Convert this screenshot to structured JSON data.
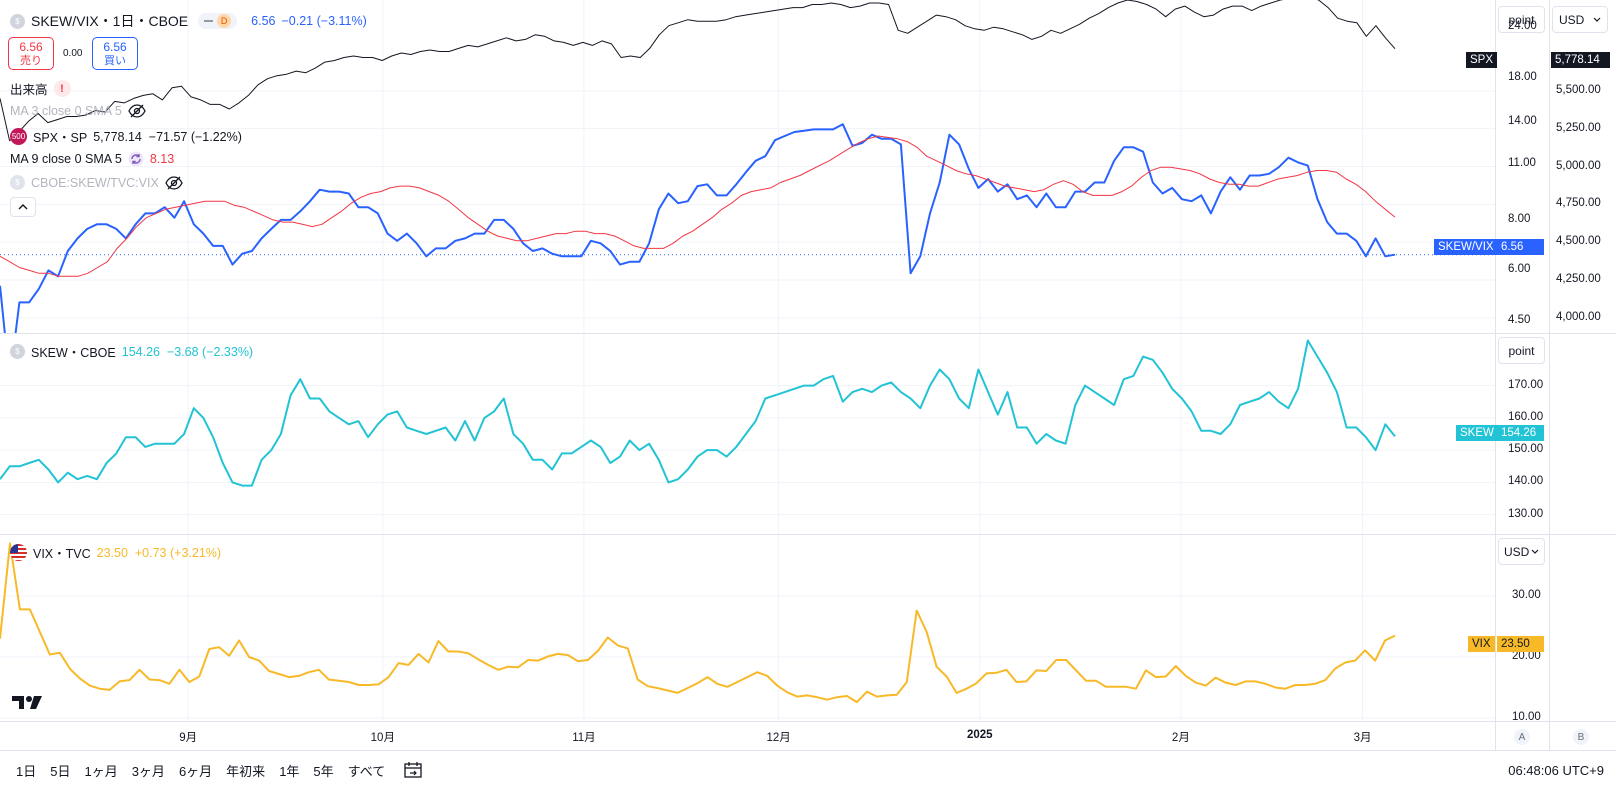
{
  "header": {
    "symbol": "SKEW/VIX・1日・CBOE",
    "interval_badge": "D",
    "last": "6.56",
    "change": "−0.21 (−3.11%)",
    "sell_price": "6.56",
    "sell_label": "売り",
    "spread": "0.00",
    "buy_price": "6.56",
    "buy_label": "買い"
  },
  "legends": {
    "volume": "出来高",
    "ma3": "MA 3 close 0 SMA 5",
    "spx_symbol": "SPX・SP",
    "spx_values": "5,778.14  −71.57 (−1.22%)",
    "spx_logo": "500",
    "ma9": "MA 9 close 0 SMA 5",
    "ma9_value": "8.13",
    "compare": "CBOE:SKEW/TVC:VIX",
    "skew_symbol": "SKEW・CBOE",
    "skew_values": "154.26  −3.68 (−2.33%)",
    "vix_symbol": "VIX・TVC",
    "vix_values": "23.50  +0.73 (+3.21%)"
  },
  "right_controls": {
    "scale_unit_1": "point",
    "currency_1": "USD",
    "scale_unit_2": "point",
    "currency_3": "USD",
    "axis_a": "A",
    "axis_b": "B"
  },
  "price_tags": {
    "spx_label": "SPX",
    "spx_value": "5,778.14",
    "ratio_label": "SKEW/VIX",
    "ratio_value": "6.56",
    "skew_label": "SKEW",
    "skew_value": "154.26",
    "vix_label": "VIX",
    "vix_value": "23.50"
  },
  "colors": {
    "ratio": "#2962ff",
    "ma9": "#f23645",
    "spx": "#131722",
    "skew": "#22c3d4",
    "vix": "#f7b928"
  },
  "axes": {
    "pane1_left_ticks": [
      "24.00",
      "18.00",
      "14.00",
      "11.00",
      "8.00",
      "6.00",
      "4.50"
    ],
    "pane1_right_ticks": [
      "5,500.00",
      "5,250.00",
      "5,000.00",
      "4,750.00",
      "4,500.00",
      "4,250.00",
      "4,000.00"
    ],
    "pane2_ticks": [
      "170.00",
      "160.00",
      "150.00",
      "140.00",
      "130.00"
    ],
    "pane3_ticks": [
      "30.00",
      "20.00",
      "10.00"
    ],
    "x_ticks": [
      "9月",
      "10月",
      "11月",
      "12月",
      "2025",
      "2月",
      "3月"
    ]
  },
  "bottom_bar": {
    "periods": [
      "1日",
      "5日",
      "1ヶ月",
      "3ヶ月",
      "6ヶ月",
      "年初来",
      "1年",
      "5年",
      "すべて"
    ],
    "clock": "06:48:06 UTC+9"
  },
  "chart_data": [
    {
      "type": "line",
      "pane": "top",
      "x_range": [
        "2024-08-03",
        "2025-03-06"
      ],
      "y_scale": "log",
      "series": [
        {
          "name": "SKEW/VIX",
          "axis": "left",
          "values": [
            5.5,
            3.2,
            5.0,
            5.0,
            5.4,
            6.0,
            5.8,
            6.7,
            7.2,
            7.6,
            7.8,
            7.8,
            7.6,
            7.2,
            7.8,
            8.3,
            8.3,
            8.6,
            8.1,
            8.9,
            7.8,
            7.4,
            6.9,
            6.9,
            6.2,
            6.6,
            6.7,
            7.2,
            7.6,
            8.0,
            8.0,
            8.4,
            8.9,
            9.5,
            9.4,
            9.4,
            9.3,
            8.6,
            8.6,
            8.3,
            7.4,
            7.1,
            7.4,
            7.0,
            6.5,
            6.8,
            6.8,
            7.1,
            7.2,
            7.4,
            7.4,
            8.0,
            8.0,
            7.6,
            7.0,
            6.7,
            6.8,
            6.6,
            6.5,
            6.5,
            6.5,
            7.1,
            7.0,
            6.7,
            6.2,
            6.3,
            6.3,
            7.0,
            8.5,
            9.3,
            8.8,
            8.9,
            9.7,
            9.8,
            9.2,
            9.2,
            9.8,
            10.5,
            11.2,
            11.5,
            12.6,
            12.9,
            13.2,
            13.3,
            13.4,
            13.4,
            13.4,
            13.8,
            12.2,
            12.4,
            13.0,
            12.7,
            12.7,
            12.3,
            5.9,
            6.5,
            8.3,
            9.9,
            13.0,
            12.3,
            10.7,
            9.6,
            10.1,
            9.4,
            9.8,
            9.0,
            9.2,
            8.6,
            9.3,
            8.6,
            8.6,
            9.4,
            9.4,
            9.9,
            9.9,
            11.2,
            12.1,
            12.1,
            11.8,
            9.9,
            9.3,
            9.6,
            9.0,
            8.9,
            9.2,
            8.3,
            9.4,
            10.2,
            9.5,
            10.3,
            10.3,
            10.4,
            10.8,
            11.4,
            11.1,
            10.9,
            9.0,
            7.9,
            7.4,
            7.4,
            7.1,
            6.5,
            7.2,
            6.5,
            6.56
          ]
        },
        {
          "name": "MA 9",
          "axis": "left",
          "values": [
            6.5,
            6.3,
            6.1,
            6.0,
            5.9,
            5.9,
            5.8,
            5.8,
            5.8,
            5.9,
            6.1,
            6.3,
            6.8,
            7.2,
            7.7,
            8.1,
            8.3,
            8.5,
            8.6,
            8.7,
            8.8,
            8.9,
            8.9,
            8.9,
            8.7,
            8.6,
            8.4,
            8.2,
            8.0,
            7.9,
            7.9,
            7.8,
            7.7,
            7.8,
            8.1,
            8.4,
            8.8,
            9.1,
            9.3,
            9.4,
            9.6,
            9.7,
            9.7,
            9.6,
            9.4,
            9.2,
            8.9,
            8.5,
            8.1,
            7.8,
            7.5,
            7.3,
            7.2,
            7.1,
            7.1,
            7.2,
            7.3,
            7.4,
            7.4,
            7.5,
            7.5,
            7.4,
            7.4,
            7.3,
            7.1,
            6.9,
            6.8,
            6.8,
            6.8,
            7.0,
            7.3,
            7.5,
            7.8,
            8.1,
            8.5,
            8.8,
            9.2,
            9.4,
            9.5,
            9.6,
            9.9,
            10.1,
            10.3,
            10.6,
            10.9,
            11.2,
            11.6,
            12.0,
            12.4,
            12.7,
            12.9,
            12.8,
            12.7,
            12.5,
            12.1,
            11.5,
            11.2,
            10.9,
            10.6,
            10.4,
            10.3,
            10.1,
            9.9,
            9.7,
            9.6,
            9.5,
            9.4,
            9.5,
            9.8,
            10.0,
            9.8,
            9.4,
            9.2,
            9.2,
            9.2,
            9.4,
            9.7,
            10.2,
            10.6,
            10.8,
            10.8,
            10.7,
            10.6,
            10.4,
            10.1,
            9.9,
            9.8,
            9.8,
            9.7,
            9.7,
            9.9,
            10.1,
            10.2,
            10.3,
            10.5,
            10.6,
            10.6,
            10.5,
            10.1,
            9.8,
            9.4,
            8.9,
            8.5,
            8.13
          ]
        },
        {
          "name": "SPX",
          "axis": "right",
          "values": [
            5450,
            5170,
            5230,
            5300,
            5350,
            5290,
            5310,
            5330,
            5330,
            5340,
            5370,
            5360,
            5430,
            5420,
            5450,
            5470,
            5480,
            5440,
            5520,
            5530,
            5460,
            5440,
            5410,
            5410,
            5380,
            5420,
            5470,
            5540,
            5580,
            5600,
            5610,
            5630,
            5620,
            5650,
            5690,
            5700,
            5720,
            5730,
            5720,
            5720,
            5700,
            5730,
            5750,
            5740,
            5760,
            5770,
            5760,
            5760,
            5780,
            5800,
            5790,
            5810,
            5830,
            5850,
            5830,
            5840,
            5870,
            5860,
            5830,
            5820,
            5800,
            5820,
            5800,
            5830,
            5810,
            5720,
            5730,
            5720,
            5780,
            5870,
            5930,
            5950,
            5970,
            5960,
            5960,
            5960,
            5970,
            5990,
            6000,
            6010,
            6020,
            6030,
            6040,
            6050,
            6050,
            6070,
            6070,
            6080,
            6070,
            6050,
            6060,
            6080,
            6080,
            6070,
            5900,
            5880,
            5920,
            5960,
            6000,
            5990,
            5970,
            5930,
            5910,
            5900,
            5920,
            5910,
            5890,
            5870,
            5840,
            5860,
            5900,
            5880,
            5910,
            5940,
            5980,
            6010,
            6050,
            6080,
            6100,
            6090,
            6070,
            6040,
            5990,
            6040,
            6060,
            6020,
            5990,
            6000,
            6040,
            6060,
            6060,
            6030,
            6060,
            6080,
            6100,
            6110,
            6120,
            6120,
            6100,
            6050,
            5980,
            5960,
            5950,
            5860,
            5930,
            5850,
            5778.14
          ]
        }
      ],
      "ylim_left": [
        4.2,
        28
      ],
      "ylim_right": [
        3900,
        6100
      ]
    },
    {
      "type": "line",
      "pane": "middle",
      "x_range": [
        "2024-08-03",
        "2025-03-06"
      ],
      "series": [
        {
          "name": "SKEW",
          "values": [
            141,
            145,
            145,
            146,
            147,
            144,
            140,
            143,
            141,
            142,
            141,
            146,
            149,
            154,
            154,
            151,
            152,
            152,
            152,
            155,
            163,
            160,
            154,
            146,
            140,
            139,
            139,
            147,
            150,
            155,
            167,
            172,
            166,
            166,
            162,
            160,
            158,
            159,
            154,
            158,
            161,
            162,
            157,
            156,
            155,
            156,
            157,
            153,
            159,
            153,
            160,
            162,
            166,
            155,
            152,
            147,
            147,
            144,
            149,
            149,
            151,
            153,
            151,
            146,
            148,
            153,
            150,
            152,
            147,
            140,
            141,
            144,
            148,
            150,
            150,
            148,
            151,
            155,
            159,
            166,
            167,
            168,
            169,
            170,
            170,
            172,
            173,
            165,
            168,
            169,
            168,
            170,
            171,
            168,
            166,
            163,
            170,
            175,
            172,
            166,
            163,
            175,
            168,
            161,
            168,
            157,
            157,
            152,
            155,
            153,
            152,
            164,
            170,
            168,
            166,
            164,
            172,
            173,
            179,
            178,
            174,
            169,
            166,
            162,
            156,
            156,
            155,
            158,
            164,
            165,
            166,
            168,
            165,
            163,
            169,
            184,
            179,
            174,
            168,
            157,
            157,
            154,
            150,
            158,
            154.26
          ]
        }
      ],
      "ylim": [
        124,
        186
      ]
    },
    {
      "type": "line",
      "pane": "bottom",
      "x_range": [
        "2024-08-03",
        "2025-03-06"
      ],
      "series": [
        {
          "name": "VIX",
          "values": [
            23.0,
            38.6,
            27.8,
            27.8,
            24.1,
            20.4,
            20.7,
            18.1,
            16.5,
            15.3,
            14.8,
            14.6,
            16.0,
            16.2,
            17.9,
            16.3,
            16.2,
            15.6,
            17.9,
            15.9,
            16.8,
            21.3,
            21.6,
            20.2,
            22.7,
            20.0,
            19.4,
            17.7,
            17.2,
            16.7,
            16.9,
            17.5,
            17.9,
            16.3,
            16.1,
            15.9,
            15.4,
            15.4,
            15.5,
            16.7,
            19.0,
            18.7,
            20.5,
            19.1,
            22.6,
            20.9,
            20.9,
            20.6,
            19.6,
            18.7,
            17.9,
            18.4,
            18.3,
            19.5,
            19.4,
            20.1,
            20.5,
            20.3,
            19.3,
            19.5,
            21.0,
            23.2,
            21.9,
            21.4,
            16.3,
            15.2,
            14.9,
            14.5,
            14.1,
            14.9,
            15.7,
            16.7,
            15.6,
            15.1,
            15.9,
            16.7,
            17.5,
            16.9,
            15.3,
            14.2,
            13.5,
            13.7,
            13.4,
            13.0,
            13.4,
            13.6,
            12.6,
            14.3,
            13.5,
            13.7,
            13.8,
            15.9,
            27.6,
            24.1,
            18.4,
            16.8,
            14.1,
            14.8,
            15.7,
            17.3,
            17.4,
            17.9,
            15.9,
            16.0,
            17.8,
            17.7,
            19.5,
            19.5,
            17.8,
            16.1,
            16.1,
            15.1,
            15.1,
            15.1,
            14.8,
            17.8,
            16.7,
            16.8,
            18.5,
            16.9,
            15.8,
            15.3,
            16.6,
            15.8,
            15.4,
            16.0,
            16.0,
            15.6,
            15.0,
            14.8,
            15.4,
            15.4,
            15.6,
            16.2,
            18.1,
            19.1,
            19.4,
            21.1,
            19.4,
            22.7,
            23.5
          ]
        }
      ],
      "ylim": [
        9.5,
        40
      ]
    }
  ]
}
